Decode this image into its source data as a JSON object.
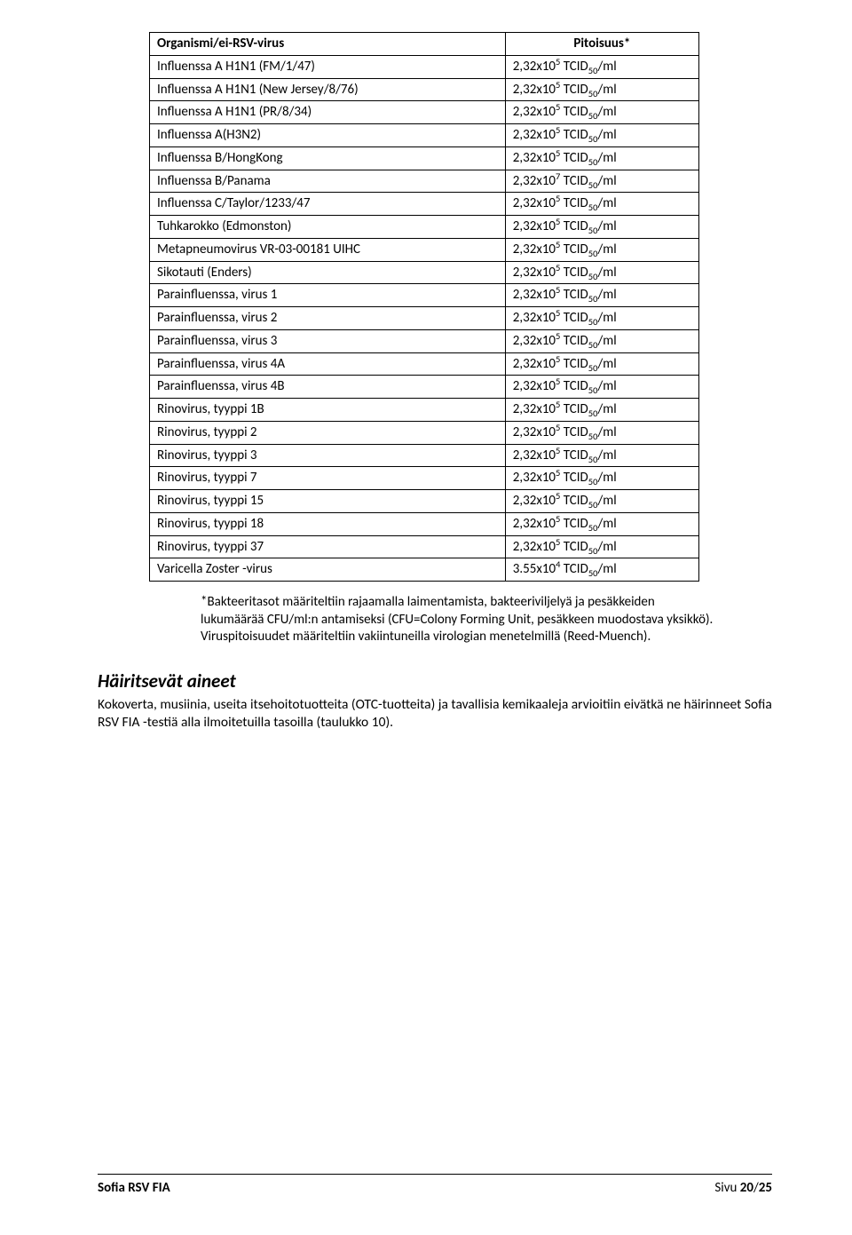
{
  "table": {
    "header_organism": "Organismi/ei-RSV-virus",
    "header_conc": "Pitoisuus*",
    "rows": [
      {
        "org": "Influenssa A H1N1 (FM/1/47)",
        "c_num": "2,32x10",
        "c_exp": "5",
        "c_unit": " TCID",
        "c_sub": "50",
        "c_suffix": "/ml"
      },
      {
        "org": "Influenssa A H1N1 (New Jersey/8/76)",
        "c_num": "2,32x10",
        "c_exp": "5",
        "c_unit": " TCID",
        "c_sub": "50",
        "c_suffix": "/ml"
      },
      {
        "org": "Influenssa A H1N1 (PR/8/34)",
        "c_num": "2,32x10",
        "c_exp": "5",
        "c_unit": " TCID",
        "c_sub": "50",
        "c_suffix": "/ml"
      },
      {
        "org": "Influenssa A(H3N2)",
        "c_num": "2,32x10",
        "c_exp": "5",
        "c_unit": " TCID",
        "c_sub": "50",
        "c_suffix": "/ml"
      },
      {
        "org": "Influenssa B/HongKong",
        "c_num": "2,32x10",
        "c_exp": "5",
        "c_unit": " TCID",
        "c_sub": "50",
        "c_suffix": "/ml"
      },
      {
        "org": "Influenssa B/Panama",
        "c_num": "2,32x10",
        "c_exp": "7",
        "c_unit": " TCID",
        "c_sub": "50",
        "c_suffix": "/ml"
      },
      {
        "org": "Influenssa C/Taylor/1233/47",
        "c_num": "2,32x10",
        "c_exp": "5",
        "c_unit": " TCID",
        "c_sub": "50",
        "c_suffix": "/ml"
      },
      {
        "org": "Tuhkarokko (Edmonston)",
        "c_num": "2,32x10",
        "c_exp": "5",
        "c_unit": " TCID",
        "c_sub": "50",
        "c_suffix": "/ml"
      },
      {
        "org": "Metapneumovirus VR-03-00181 UIHC",
        "c_num": "2,32x10",
        "c_exp": "5",
        "c_unit": " TCID",
        "c_sub": "50",
        "c_suffix": "/ml"
      },
      {
        "org": "Sikotauti (Enders)",
        "c_num": "2,32x10",
        "c_exp": "5",
        "c_unit": " TCID",
        "c_sub": "50",
        "c_suffix": "/ml"
      },
      {
        "org": "Parainfluenssa, virus 1",
        "c_num": "2,32x10",
        "c_exp": "5",
        "c_unit": " TCID",
        "c_sub": "50",
        "c_suffix": "/ml"
      },
      {
        "org": "Parainfluenssa, virus 2",
        "c_num": "2,32x10",
        "c_exp": "5",
        "c_unit": " TCID",
        "c_sub": "50",
        "c_suffix": "/ml"
      },
      {
        "org": "Parainfluenssa, virus 3",
        "c_num": "2,32x10",
        "c_exp": "5",
        "c_unit": " TCID",
        "c_sub": "50",
        "c_suffix": "/ml"
      },
      {
        "org": "Parainfluenssa, virus 4A",
        "c_num": "2,32x10",
        "c_exp": "5",
        "c_unit": " TCID",
        "c_sub": "50",
        "c_suffix": "/ml"
      },
      {
        "org": "Parainfluenssa, virus 4B",
        "c_num": "2,32x10",
        "c_exp": "5",
        "c_unit": " TCID",
        "c_sub": "50",
        "c_suffix": "/ml"
      },
      {
        "org": "Rinovirus, tyyppi 1B",
        "c_num": "2,32x10",
        "c_exp": "5",
        "c_unit": " TCID",
        "c_sub": "50",
        "c_suffix": "/ml"
      },
      {
        "org": "Rinovirus, tyyppi 2",
        "c_num": "2,32x10",
        "c_exp": "5",
        "c_unit": " TCID",
        "c_sub": "50",
        "c_suffix": "/ml"
      },
      {
        "org": "Rinovirus, tyyppi 3",
        "c_num": "2,32x10",
        "c_exp": "5",
        "c_unit": " TCID",
        "c_sub": "50",
        "c_suffix": "/ml"
      },
      {
        "org": "Rinovirus, tyyppi 7",
        "c_num": "2,32x10",
        "c_exp": "5",
        "c_unit": " TCID",
        "c_sub": "50",
        "c_suffix": "/ml"
      },
      {
        "org": "Rinovirus, tyyppi 15",
        "c_num": "2,32x10",
        "c_exp": "5",
        "c_unit": " TCID",
        "c_sub": "50",
        "c_suffix": "/ml"
      },
      {
        "org": "Rinovirus, tyyppi 18",
        "c_num": "2,32x10",
        "c_exp": "5",
        "c_unit": " TCID",
        "c_sub": "50",
        "c_suffix": "/ml"
      },
      {
        "org": "Rinovirus, tyyppi 37",
        "c_num": "2,32x10",
        "c_exp": "5",
        "c_unit": " TCID",
        "c_sub": "50",
        "c_suffix": "/ml"
      },
      {
        "org": "Varicella Zoster -virus",
        "c_num": "3.55x10",
        "c_exp": "4",
        "c_unit": " TCID",
        "c_sub": "50",
        "c_suffix": "/ml"
      }
    ]
  },
  "footnote": "*Bakteeritasot määriteltiin rajaamalla laimentamista, bakteeriviljelyä ja pesäkkeiden lukumäärää CFU/ml:n antamiseksi (CFU=Colony Forming Unit, pesäkkeen muodostava yksikkö). Viruspitoisuudet määriteltiin vakiintuneilla virologian menetelmillä (Reed-Muench).",
  "section_heading": "Häiritsevät aineet",
  "body_para": "Kokoverta, musiinia, useita itsehoitotuotteita (OTC-tuotteita) ja tavallisia kemikaaleja arvioitiin eivätkä ne häirinneet Sofia RSV FIA -testiä alla ilmoitetuilla tasoilla (taulukko 10).",
  "footer": {
    "left": "Sofia RSV FIA",
    "right_label": "Sivu ",
    "page": "20",
    "sep": "/",
    "total": "25"
  }
}
